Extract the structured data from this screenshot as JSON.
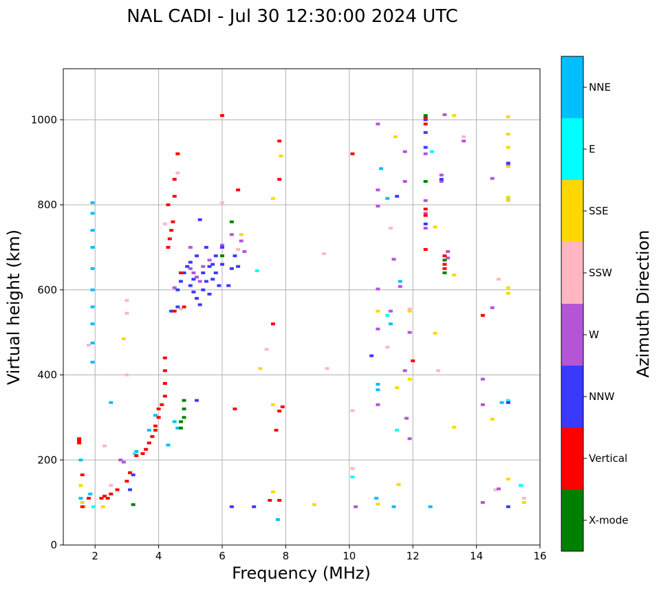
{
  "chart_data": {
    "type": "scatter",
    "title": "NAL CADI - Jul 30 12:30:00 2024 UTC",
    "xlabel": "Frequency (MHz)",
    "ylabel": "Virtual height (km)",
    "xlim": [
      1,
      16
    ],
    "ylim": [
      0,
      1120
    ],
    "x_ticks": [
      2,
      4,
      6,
      8,
      10,
      12,
      14,
      16
    ],
    "y_ticks": [
      0,
      200,
      400,
      600,
      800,
      1000
    ],
    "x_tick_labels": [
      "2",
      "4",
      "6",
      "8",
      "10",
      "12",
      "14",
      "16"
    ],
    "y_tick_labels": [
      "0",
      "200",
      "400",
      "600",
      "800",
      "1000"
    ],
    "grid": true,
    "colorbar": {
      "label": "Azimuth Direction",
      "categories": [
        "X-mode",
        "Vertical",
        "NNW",
        "W",
        "SSW",
        "SSE",
        "E",
        "NNE"
      ],
      "colors": [
        "#008000",
        "#ff0000",
        "#3a3aff",
        "#b455d6",
        "#ffb6c1",
        "#ffd700",
        "#00ffff",
        "#00bfff"
      ]
    },
    "series": [
      {
        "name": "NNE",
        "points": [
          [
            1.55,
            110
          ],
          [
            1.55,
            200
          ],
          [
            1.65,
            90
          ],
          [
            1.85,
            120
          ],
          [
            1.92,
            430
          ],
          [
            1.92,
            475
          ],
          [
            1.92,
            520
          ],
          [
            1.92,
            560
          ],
          [
            1.92,
            600
          ],
          [
            1.92,
            650
          ],
          [
            1.92,
            700
          ],
          [
            1.92,
            740
          ],
          [
            1.92,
            780
          ],
          [
            1.92,
            805
          ],
          [
            2.5,
            335
          ],
          [
            3.3,
            220
          ],
          [
            3.5,
            215
          ],
          [
            3.7,
            270
          ],
          [
            3.9,
            305
          ],
          [
            4.3,
            235
          ],
          [
            4.5,
            290
          ],
          [
            4.6,
            275
          ],
          [
            7.75,
            60
          ],
          [
            10.85,
            110
          ],
          [
            10.9,
            378
          ],
          [
            10.9,
            365
          ],
          [
            11.0,
            885
          ],
          [
            11.2,
            815
          ],
          [
            11.3,
            520
          ],
          [
            11.4,
            90
          ],
          [
            11.6,
            620
          ],
          [
            12.55,
            90
          ],
          [
            14.8,
            335
          ],
          [
            15.4,
            140
          ]
        ]
      },
      {
        "name": "E",
        "points": [
          [
            1.6,
            100
          ],
          [
            1.95,
            90
          ],
          [
            3.25,
            215
          ],
          [
            7.1,
            645
          ],
          [
            10.1,
            160
          ],
          [
            11.2,
            540
          ],
          [
            11.5,
            270
          ],
          [
            12.6,
            925
          ],
          [
            15.0,
            340
          ],
          [
            15.0,
            812
          ],
          [
            15.4,
            140
          ]
        ]
      },
      {
        "name": "SSE",
        "points": [
          [
            1.55,
            140
          ],
          [
            1.6,
            100
          ],
          [
            1.65,
            90
          ],
          [
            2.25,
            90
          ],
          [
            2.9,
            485
          ],
          [
            6.6,
            730
          ],
          [
            7.2,
            415
          ],
          [
            7.6,
            330
          ],
          [
            7.6,
            815
          ],
          [
            7.6,
            125
          ],
          [
            7.85,
            915
          ],
          [
            8.9,
            95
          ],
          [
            10.9,
            96
          ],
          [
            10.9,
            550
          ],
          [
            11.55,
            142
          ],
          [
            11.45,
            960
          ],
          [
            11.5,
            370
          ],
          [
            11.9,
            390
          ],
          [
            11.9,
            550
          ],
          [
            12.7,
            748
          ],
          [
            12.7,
            498
          ],
          [
            13.3,
            1010
          ],
          [
            13.3,
            635
          ],
          [
            13.3,
            277
          ],
          [
            14.5,
            296
          ],
          [
            15.0,
            1007
          ],
          [
            15.0,
            966
          ],
          [
            15.0,
            935
          ],
          [
            15.0,
            890
          ],
          [
            15.0,
            818
          ],
          [
            15.0,
            810
          ],
          [
            15.0,
            605
          ],
          [
            15.0,
            592
          ],
          [
            15.0,
            155
          ],
          [
            15.5,
            100
          ]
        ]
      },
      {
        "name": "SSW",
        "points": [
          [
            1.8,
            470
          ],
          [
            2.3,
            233
          ],
          [
            2.5,
            140
          ],
          [
            3.0,
            545
          ],
          [
            3.0,
            575
          ],
          [
            3.0,
            400
          ],
          [
            4.2,
            755
          ],
          [
            4.2,
            380
          ],
          [
            4.6,
            875
          ],
          [
            4.7,
            555
          ],
          [
            6.0,
            805
          ],
          [
            6.5,
            695
          ],
          [
            7.4,
            460
          ],
          [
            9.2,
            685
          ],
          [
            9.3,
            415
          ],
          [
            10.1,
            180
          ],
          [
            10.1,
            316
          ],
          [
            11.2,
            465
          ],
          [
            11.3,
            745
          ],
          [
            11.9,
            555
          ],
          [
            12.8,
            410
          ],
          [
            13.6,
            960
          ],
          [
            14.7,
            625
          ],
          [
            14.6,
            130
          ],
          [
            15.5,
            110
          ]
        ]
      },
      {
        "name": "W",
        "points": [
          [
            2.8,
            200
          ],
          [
            2.9,
            195
          ],
          [
            3.1,
            170
          ],
          [
            4.5,
            605
          ],
          [
            5.0,
            650
          ],
          [
            5.1,
            640
          ],
          [
            5.2,
            630
          ],
          [
            5.3,
            620
          ],
          [
            5.4,
            655
          ],
          [
            5.6,
            670
          ],
          [
            5.0,
            700
          ],
          [
            6.0,
            705
          ],
          [
            6.3,
            730
          ],
          [
            6.6,
            715
          ],
          [
            6.7,
            690
          ],
          [
            10.2,
            90
          ],
          [
            10.9,
            990
          ],
          [
            10.9,
            835
          ],
          [
            10.9,
            797
          ],
          [
            10.9,
            602
          ],
          [
            10.9,
            508
          ],
          [
            10.9,
            330
          ],
          [
            11.3,
            550
          ],
          [
            11.4,
            672
          ],
          [
            11.6,
            608
          ],
          [
            11.75,
            925
          ],
          [
            11.75,
            855
          ],
          [
            11.75,
            410
          ],
          [
            11.8,
            298
          ],
          [
            11.9,
            500
          ],
          [
            11.9,
            250
          ],
          [
            12.4,
            920
          ],
          [
            12.4,
            810
          ],
          [
            12.4,
            780
          ],
          [
            12.4,
            745
          ],
          [
            12.9,
            870
          ],
          [
            12.9,
            855
          ],
          [
            13.0,
            1012
          ],
          [
            13.1,
            690
          ],
          [
            13.1,
            675
          ],
          [
            13.6,
            950
          ],
          [
            14.5,
            862
          ],
          [
            14.5,
            558
          ],
          [
            14.2,
            390
          ],
          [
            14.2,
            330
          ],
          [
            14.2,
            100
          ],
          [
            14.7,
            132
          ],
          [
            15.0,
            896
          ]
        ]
      },
      {
        "name": "NNW",
        "points": [
          [
            3.2,
            165
          ],
          [
            3.1,
            130
          ],
          [
            3.5,
            215
          ],
          [
            4.4,
            550
          ],
          [
            4.6,
            560
          ],
          [
            4.6,
            600
          ],
          [
            4.7,
            620
          ],
          [
            4.8,
            640
          ],
          [
            4.9,
            655
          ],
          [
            5.0,
            665
          ],
          [
            5.0,
            610
          ],
          [
            5.1,
            625
          ],
          [
            5.1,
            595
          ],
          [
            5.2,
            680
          ],
          [
            5.2,
            580
          ],
          [
            5.3,
            565
          ],
          [
            5.4,
            600
          ],
          [
            5.4,
            640
          ],
          [
            5.5,
            700
          ],
          [
            5.5,
            620
          ],
          [
            5.6,
            655
          ],
          [
            5.6,
            590
          ],
          [
            5.7,
            660
          ],
          [
            5.7,
            625
          ],
          [
            5.8,
            680
          ],
          [
            5.8,
            640
          ],
          [
            5.9,
            610
          ],
          [
            6.0,
            660
          ],
          [
            6.0,
            700
          ],
          [
            6.2,
            610
          ],
          [
            6.3,
            650
          ],
          [
            6.4,
            680
          ],
          [
            6.5,
            655
          ],
          [
            5.3,
            765
          ],
          [
            5.2,
            340
          ],
          [
            6.3,
            90
          ],
          [
            7.0,
            90
          ],
          [
            10.7,
            445
          ],
          [
            11.5,
            820
          ],
          [
            12.4,
            935
          ],
          [
            12.4,
            1000
          ],
          [
            12.4,
            970
          ],
          [
            12.4,
            755
          ],
          [
            12.9,
            860
          ],
          [
            15.0,
            898
          ],
          [
            15.0,
            90
          ],
          [
            15.0,
            335
          ]
        ]
      },
      {
        "name": "Vertical",
        "points": [
          [
            1.5,
            250
          ],
          [
            1.5,
            245
          ],
          [
            1.5,
            240
          ],
          [
            1.6,
            165
          ],
          [
            1.6,
            90
          ],
          [
            1.8,
            110
          ],
          [
            2.2,
            110
          ],
          [
            2.3,
            115
          ],
          [
            2.4,
            110
          ],
          [
            2.5,
            120
          ],
          [
            2.7,
            130
          ],
          [
            3.0,
            150
          ],
          [
            3.1,
            170
          ],
          [
            3.3,
            210
          ],
          [
            3.5,
            215
          ],
          [
            3.6,
            225
          ],
          [
            3.7,
            240
          ],
          [
            3.8,
            255
          ],
          [
            3.9,
            270
          ],
          [
            3.9,
            280
          ],
          [
            4.0,
            300
          ],
          [
            4.0,
            320
          ],
          [
            4.1,
            330
          ],
          [
            4.2,
            350
          ],
          [
            4.2,
            380
          ],
          [
            4.2,
            410
          ],
          [
            4.2,
            440
          ],
          [
            4.3,
            700
          ],
          [
            4.35,
            720
          ],
          [
            4.4,
            740
          ],
          [
            4.45,
            760
          ],
          [
            4.3,
            800
          ],
          [
            4.5,
            820
          ],
          [
            4.5,
            860
          ],
          [
            4.6,
            920
          ],
          [
            4.7,
            640
          ],
          [
            4.8,
            560
          ],
          [
            4.5,
            550
          ],
          [
            6.5,
            835
          ],
          [
            6.4,
            320
          ],
          [
            6.0,
            1010
          ],
          [
            7.6,
            520
          ],
          [
            7.8,
            950
          ],
          [
            7.8,
            860
          ],
          [
            7.7,
            270
          ],
          [
            7.8,
            315
          ],
          [
            7.9,
            325
          ],
          [
            7.8,
            105
          ],
          [
            7.5,
            105
          ],
          [
            10.1,
            920
          ],
          [
            12.0,
            433
          ],
          [
            12.4,
            1005
          ],
          [
            12.4,
            990
          ],
          [
            12.4,
            790
          ],
          [
            12.4,
            775
          ],
          [
            12.4,
            695
          ],
          [
            13.0,
            680
          ],
          [
            13.0,
            660
          ],
          [
            13.0,
            650
          ],
          [
            14.2,
            540
          ]
        ]
      },
      {
        "name": "X-mode",
        "points": [
          [
            3.2,
            95
          ],
          [
            4.7,
            275
          ],
          [
            4.7,
            290
          ],
          [
            4.8,
            300
          ],
          [
            4.8,
            320
          ],
          [
            4.8,
            340
          ],
          [
            6.3,
            760
          ],
          [
            6.0,
            680
          ],
          [
            12.4,
            1010
          ],
          [
            12.4,
            855
          ],
          [
            13.0,
            670
          ],
          [
            13.0,
            640
          ]
        ]
      }
    ]
  }
}
